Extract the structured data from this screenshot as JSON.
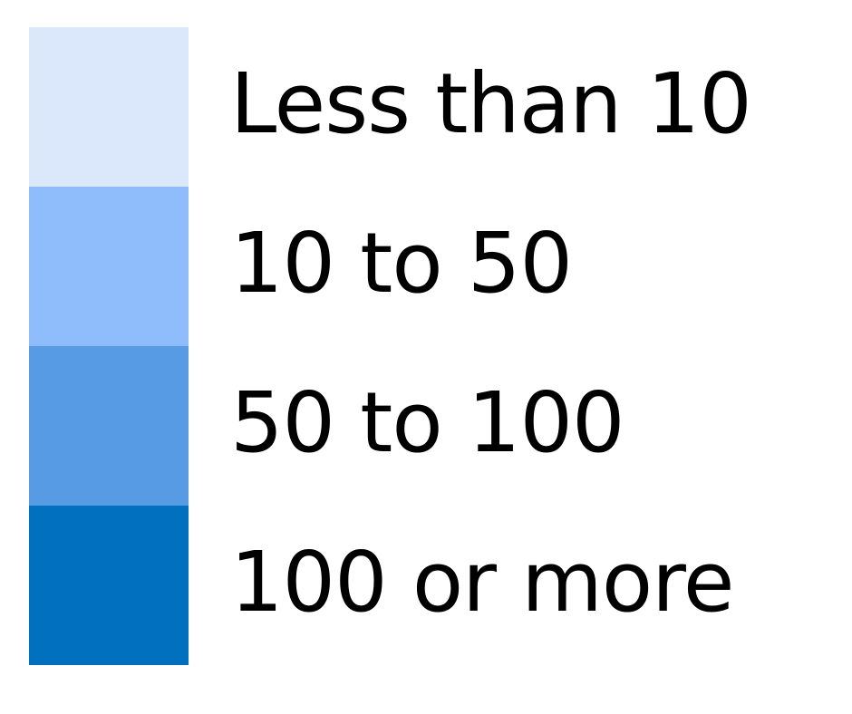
{
  "chart_data": {
    "type": "legend",
    "items": [
      {
        "label": "Less than 10",
        "color": "#dbe8fc"
      },
      {
        "label": "10 to 50",
        "color": "#8fbdfb"
      },
      {
        "label": "50 to 100",
        "color": "#589be5"
      },
      {
        "label": "100 or more",
        "color": "#0070bf"
      }
    ]
  }
}
